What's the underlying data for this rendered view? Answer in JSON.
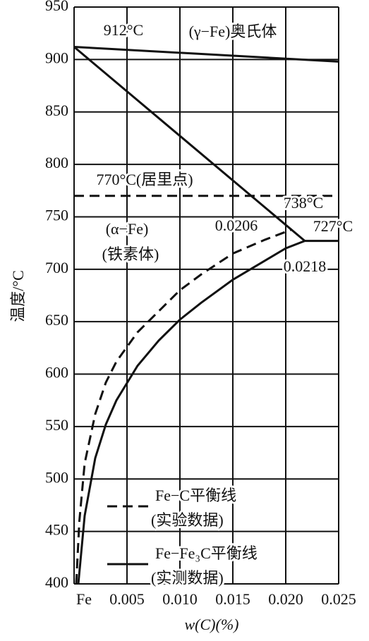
{
  "chart_data": {
    "type": "line",
    "xlabel": "w(C)(%)",
    "ylabel": "温度/°C",
    "xlim": [
      0,
      0.025
    ],
    "ylim": [
      400,
      950
    ],
    "xticks": [
      {
        "value": 0,
        "label": "Fe"
      },
      0.005,
      {
        "value": 0.01,
        "label": "0.010"
      },
      0.015,
      {
        "value": 0.02,
        "label": "0.020"
      },
      0.025
    ],
    "yticks": [
      400,
      450,
      500,
      550,
      600,
      650,
      700,
      750,
      800,
      850,
      900,
      950
    ],
    "grid": true,
    "series": [
      {
        "name": "Fe−C平衡线",
        "name_line2": "(实验数据)",
        "color": "#111",
        "dash": true,
        "x": [
          0.0002,
          0.0005,
          0.001,
          0.002,
          0.003,
          0.004,
          0.006,
          0.008,
          0.01,
          0.012,
          0.015,
          0.018,
          0.0206
        ],
        "values": [
          400,
          460,
          515,
          562,
          592,
          612,
          640,
          660,
          680,
          695,
          715,
          728,
          738
        ]
      },
      {
        "name": "Fe−Fe₃C平衡线",
        "name_line2": "(实测数据)",
        "color": "#111",
        "dash": false,
        "x": [
          0.0004,
          0.001,
          0.002,
          0.003,
          0.004,
          0.006,
          0.008,
          0.01,
          0.012,
          0.015,
          0.018,
          0.02,
          0.0218,
          0.025
        ],
        "values": [
          400,
          465,
          520,
          552,
          575,
          608,
          632,
          652,
          668,
          690,
          708,
          720,
          727,
          727
        ]
      }
    ],
    "boundaries": [
      {
        "x": [
          0,
          0.025
        ],
        "values": [
          912,
          898
        ],
        "color": "#111",
        "dash": false
      },
      {
        "x": [
          0,
          0.0218
        ],
        "values": [
          912,
          727
        ],
        "color": "#111",
        "dash": false
      },
      {
        "x": [
          0,
          0.025
        ],
        "values": [
          770,
          770
        ],
        "color": "#111",
        "dash": true
      }
    ],
    "annotations": [
      "912°C",
      "(γ−Fe)奥氏体",
      "770°C(居里点)",
      "738°C",
      "0.0206",
      "727°C",
      "(α−Fe)",
      "(铁素体)",
      "0.0218"
    ]
  }
}
